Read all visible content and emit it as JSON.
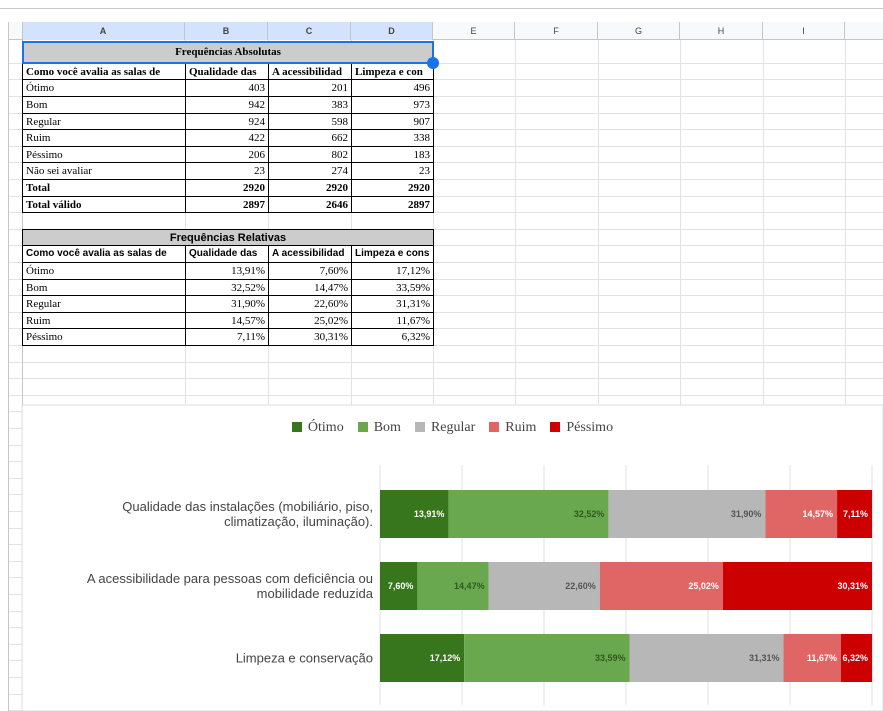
{
  "sheet": {
    "columns": [
      "A",
      "B",
      "C",
      "D",
      "E",
      "F",
      "G",
      "H",
      "I"
    ],
    "table1": {
      "title": "Frequências Absolutas",
      "header": [
        "Como você avalia as salas de",
        "Qualidade das",
        "A acessibilidad",
        "Limpeza e con"
      ],
      "rows": [
        [
          "Ótimo",
          403,
          201,
          496
        ],
        [
          "Bom",
          942,
          383,
          973
        ],
        [
          "Regular",
          924,
          598,
          907
        ],
        [
          "Ruim",
          422,
          662,
          338
        ],
        [
          "Péssimo",
          206,
          802,
          183
        ],
        [
          "Não sei avaliar",
          23,
          274,
          23
        ],
        [
          "Total",
          2920,
          2920,
          2920
        ],
        [
          "Total válido",
          2897,
          2646,
          2897
        ]
      ]
    },
    "table2": {
      "title": "Frequências Relativas",
      "header": [
        "Como você avalia as salas de",
        "Qualidade das",
        "A acessibilidad",
        "Limpeza e cons"
      ],
      "rows": [
        [
          "Ótimo",
          "13,91%",
          "7,60%",
          "17,12%"
        ],
        [
          "Bom",
          "32,52%",
          "14,47%",
          "33,59%"
        ],
        [
          "Regular",
          "31,90%",
          "22,60%",
          "31,31%"
        ],
        [
          "Ruim",
          "14,57%",
          "25,02%",
          "11,67%"
        ],
        [
          "Péssimo",
          "7,11%",
          "30,31%",
          "6,32%"
        ]
      ]
    }
  },
  "chart_data": {
    "type": "bar",
    "orientation": "horizontal",
    "stacked": true,
    "legend": "top",
    "xlim": [
      0,
      100
    ],
    "categories": [
      "Qualidade das instalações (mobiliário, piso, climatização, iluminação).",
      "A acessibilidade para pessoas com deficiência ou mobilidade reduzida",
      "Limpeza e conservação"
    ],
    "series": [
      {
        "name": "Ótimo",
        "color": "#38761d",
        "values": [
          13.91,
          7.6,
          17.12
        ],
        "value_labels": [
          "13,91%",
          "7,60%",
          "17,12%"
        ]
      },
      {
        "name": "Bom",
        "color": "#6aa84f",
        "values": [
          32.52,
          14.47,
          33.59
        ],
        "value_labels": [
          "32,52%",
          "14,47%",
          "33,59%"
        ]
      },
      {
        "name": "Regular",
        "color": "#b7b7b7",
        "values": [
          31.9,
          22.6,
          31.31
        ],
        "value_labels": [
          "31,90%",
          "22,60%",
          "31,31%"
        ]
      },
      {
        "name": "Ruim",
        "color": "#e06666",
        "values": [
          14.57,
          25.02,
          11.67
        ],
        "value_labels": [
          "14,57%",
          "25,02%",
          "11,67%"
        ]
      },
      {
        "name": "Péssimo",
        "color": "#cc0000",
        "values": [
          7.11,
          30.31,
          6.32
        ],
        "value_labels": [
          "7,11%",
          "30,31%",
          "6,32%"
        ]
      }
    ]
  }
}
